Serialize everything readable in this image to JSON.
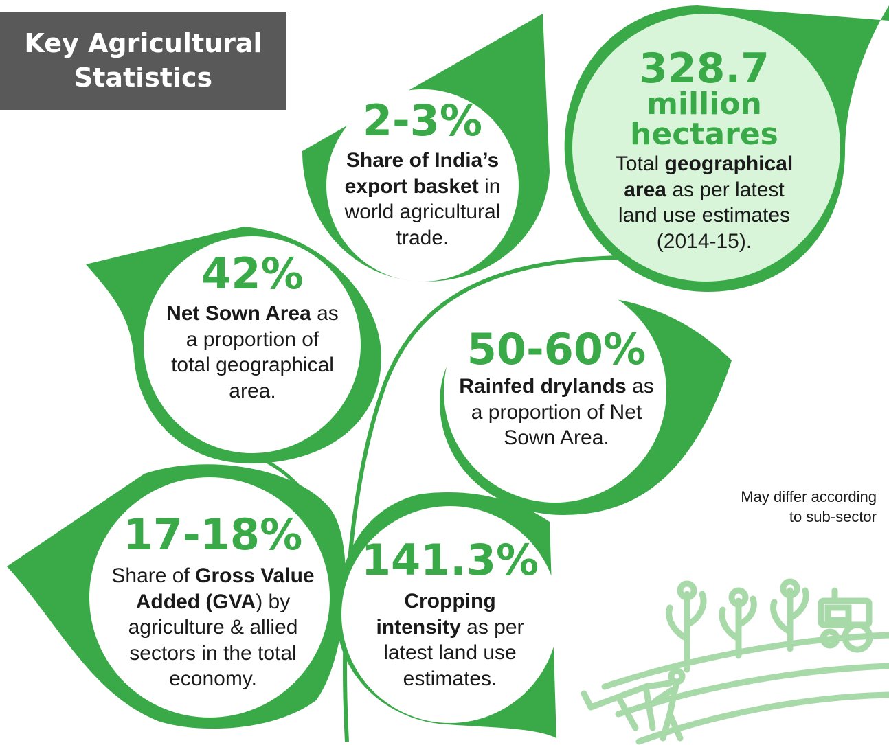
{
  "title": {
    "line1": "Key Agricultural",
    "line2": "Statistics"
  },
  "colors": {
    "leaf": "#3aaa48",
    "leaf_dark": "#2e9a3c",
    "highlight_circle": "#d8f5d9",
    "title_bg": "#595959",
    "icon": "#a8d9a8"
  },
  "stats": {
    "export": {
      "value": "2-3%",
      "bold": "Share of India’s export basket",
      "rest": " in world agricultural trade."
    },
    "area": {
      "value": "328.7",
      "unit1": "million",
      "unit2": "hectares",
      "pre": "Total ",
      "bold": "geographical area",
      "rest": " as per latest land use estimates (2014-15)."
    },
    "net_sown": {
      "value": "42%",
      "bold": "Net Sown Area",
      "rest": " as a proportion of total geographical area."
    },
    "rainfed": {
      "value": "50-60%",
      "bold": "Rainfed drylands",
      "rest": " as a proportion of Net Sown Area."
    },
    "gva": {
      "value": "17-18%",
      "pre": "Share of ",
      "bold": "Gross Value Added (GVA",
      "rest": ") by agriculture & allied sectors in the total economy."
    },
    "cropping": {
      "value": "141.3%",
      "bold": "Cropping intensity",
      "rest": " as per latest land use estimates."
    }
  },
  "note": "May differ according to sub-sector",
  "icons": [
    "plant-icon",
    "tractor-icon",
    "ox-plough-icon",
    "farmer-icon",
    "field-icon"
  ]
}
